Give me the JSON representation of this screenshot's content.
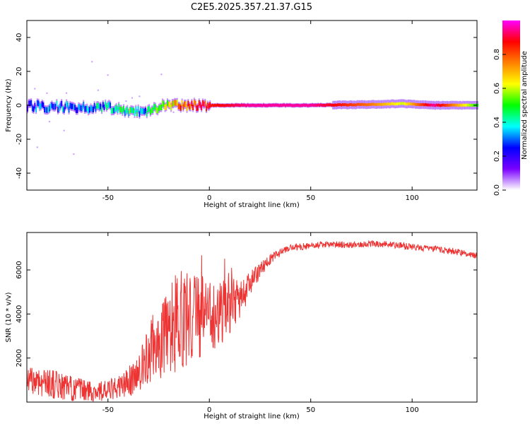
{
  "title": "C2E5.2025.357.21.37.G15",
  "chart_data": [
    {
      "type": "heatmap",
      "name": "spectrogram",
      "xlabel": "Height of straight line (km)",
      "ylabel": "Frequency (Hz)",
      "xlim": [
        -90,
        132
      ],
      "ylim": [
        -50,
        50
      ],
      "xticks": [
        -50,
        0,
        50,
        100
      ],
      "yticks": [
        -40,
        -20,
        0,
        20,
        40
      ],
      "ridge": {
        "x": [
          -90,
          -80,
          -70,
          -60,
          -50,
          -45,
          -40,
          -35,
          -32,
          -28,
          -25,
          -20,
          -15,
          -10,
          0,
          10,
          20,
          50,
          80,
          95,
          110,
          132
        ],
        "freq": [
          0,
          -1,
          -1,
          -1.5,
          -1,
          -2,
          -3,
          -4,
          -5,
          -3,
          -1,
          0,
          0,
          0,
          0,
          0,
          0,
          0,
          0.5,
          1,
          0,
          0
        ],
        "amplitude": [
          0.25,
          0.3,
          0.3,
          0.35,
          0.35,
          0.4,
          0.45,
          0.4,
          0.3,
          0.5,
          0.55,
          0.6,
          0.75,
          0.8,
          0.85,
          0.9,
          0.95,
          0.95,
          0.75,
          0.6,
          0.95,
          0.5
        ]
      },
      "colorbar": {
        "label": "Normalized spectral amplitude",
        "range": [
          0,
          1
        ],
        "ticks": [
          "0.0",
          "0.2",
          "0.4",
          "0.6",
          "0.8"
        ],
        "colors": [
          "#ffffff",
          "#7a00ff",
          "#0000ff",
          "#00ffff",
          "#00ff00",
          "#ffff00",
          "#ff8000",
          "#ff0000",
          "#ff00ff"
        ]
      }
    },
    {
      "type": "line",
      "name": "snr",
      "xlabel": "Height of straight line (km)",
      "ylabel": "SNR (10 * v/v)",
      "xlim": [
        -90,
        132
      ],
      "ylim": [
        0,
        7700
      ],
      "xticks": [
        -50,
        0,
        50,
        100
      ],
      "yticks": [
        2000,
        4000,
        6000
      ],
      "color": "#ee3333",
      "envelope": {
        "x": [
          -90,
          -80,
          -70,
          -60,
          -50,
          -45,
          -40,
          -35,
          -30,
          -25,
          -20,
          -15,
          -10,
          -5,
          0,
          5,
          10,
          15,
          20,
          25,
          30,
          35,
          40,
          45,
          50,
          60,
          70,
          80,
          90,
          100,
          110,
          120,
          132
        ],
        "mean": [
          1000,
          900,
          650,
          500,
          500,
          650,
          900,
          1300,
          2200,
          2800,
          3300,
          3700,
          3800,
          3900,
          4000,
          4100,
          4300,
          4700,
          5300,
          6000,
          6500,
          6800,
          7000,
          7050,
          7100,
          7150,
          7150,
          7200,
          7150,
          7050,
          6950,
          6850,
          6650
        ],
        "spread": [
          600,
          700,
          600,
          500,
          500,
          550,
          700,
          900,
          1300,
          1800,
          2200,
          2300,
          2200,
          1900,
          1700,
          1600,
          1400,
          900,
          600,
          350,
          250,
          180,
          150,
          150,
          150,
          150,
          150,
          150,
          150,
          150,
          150,
          150,
          150
        ]
      }
    }
  ]
}
